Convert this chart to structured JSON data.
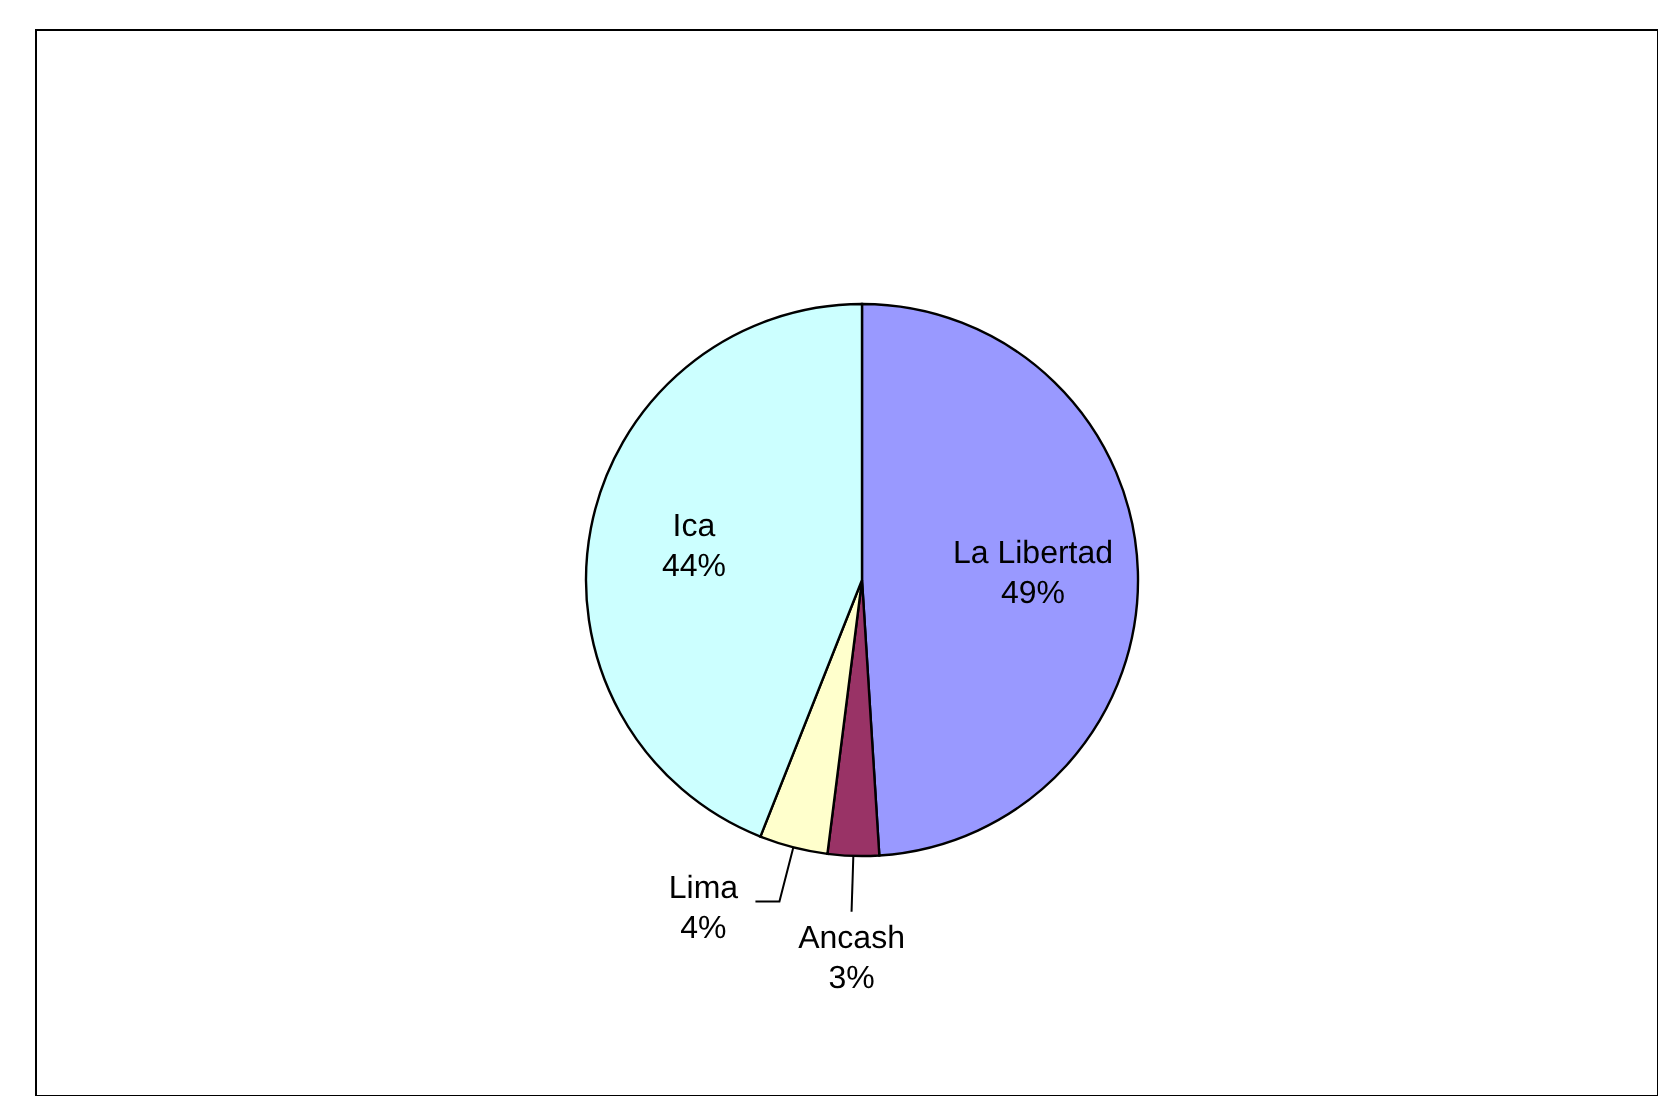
{
  "chart_data": {
    "type": "pie",
    "categories": [
      "La Libertad",
      "Ancash",
      "Lima",
      "Ica"
    ],
    "values": [
      49,
      3,
      4,
      44
    ],
    "colors": [
      "#9999ff",
      "#993366",
      "#ffffcc",
      "#ccffff"
    ],
    "value_labels": [
      "49%",
      "3%",
      "4%",
      "44%"
    ]
  }
}
